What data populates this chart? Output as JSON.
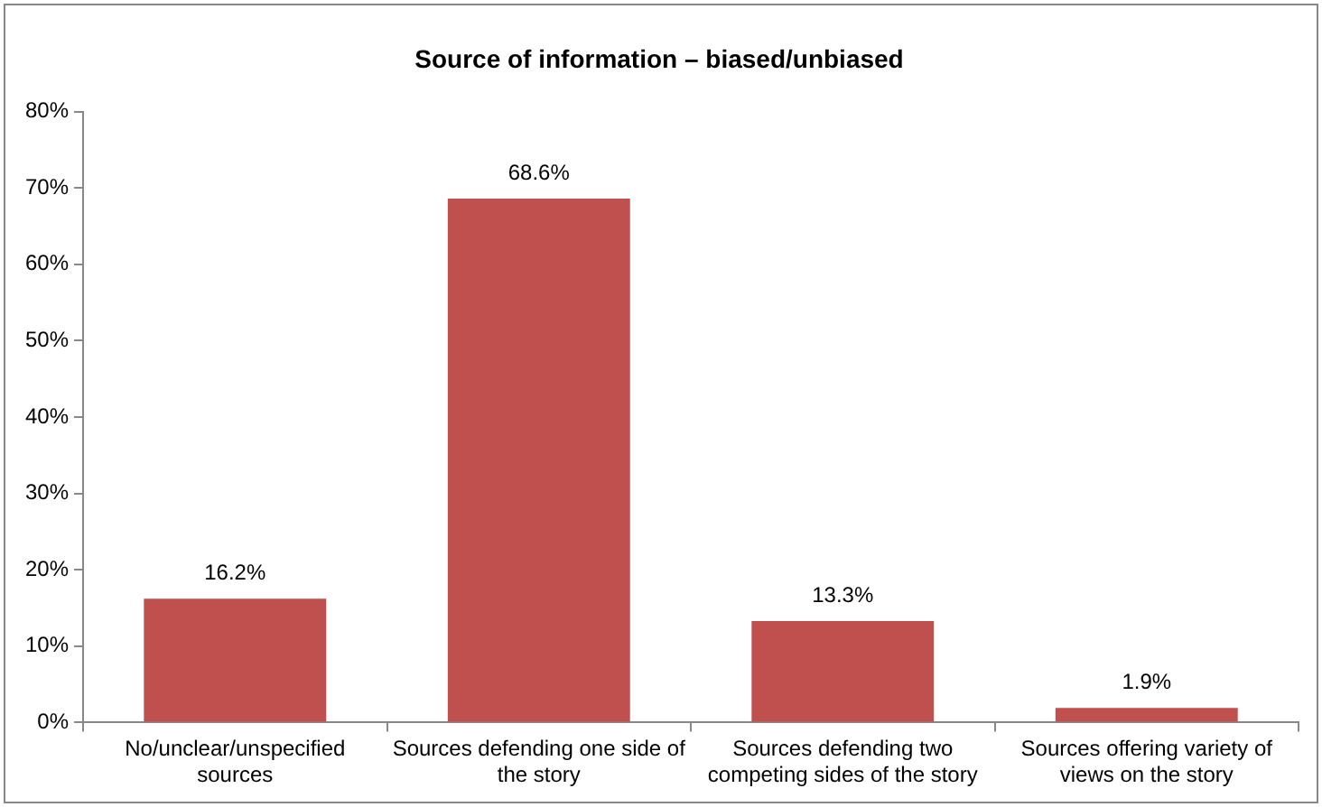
{
  "chart_data": {
    "type": "bar",
    "title": "Source of information – biased/unbiased",
    "categories": [
      "No/unclear/unspecified sources",
      "Sources defending one side of the story",
      "Sources defending two competing sides of the story",
      "Sources offering variety of views on the story"
    ],
    "values": [
      16.2,
      68.6,
      13.3,
      1.9
    ],
    "value_labels": [
      "16.2%",
      "68.6%",
      "13.3%",
      "1.9%"
    ],
    "color": "#c0504d",
    "ylim": [
      0,
      80
    ],
    "yticks": [
      {
        "value": 0,
        "label": "0%"
      },
      {
        "value": 10,
        "label": "10%"
      },
      {
        "value": 20,
        "label": "20%"
      },
      {
        "value": 30,
        "label": "30%"
      },
      {
        "value": 40,
        "label": "40%"
      },
      {
        "value": 50,
        "label": "50%"
      },
      {
        "value": 60,
        "label": "60%"
      },
      {
        "value": 70,
        "label": "70%"
      },
      {
        "value": 80,
        "label": "80%"
      }
    ],
    "grid": false,
    "legend": false
  }
}
